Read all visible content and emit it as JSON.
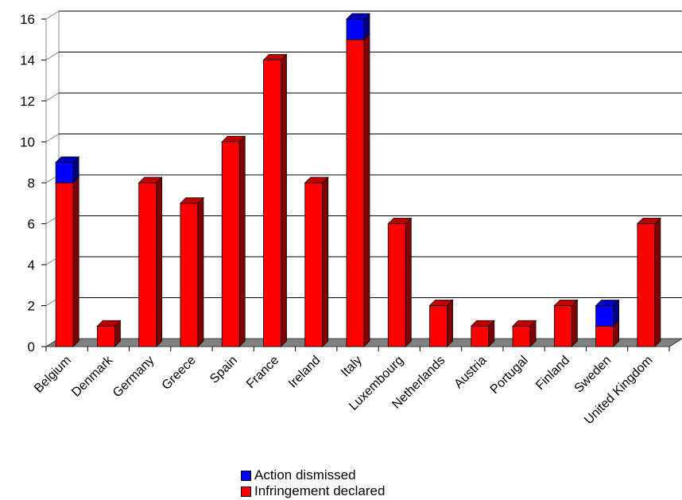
{
  "chart_data": {
    "type": "bar",
    "stacked": true,
    "three_d": true,
    "categories": [
      "Belgium",
      "Denmark",
      "Germany",
      "Greece",
      "Spain",
      "France",
      "Ireland",
      "Italy",
      "Luxembourg",
      "Netherlands",
      "Austria",
      "Portugal",
      "Finland",
      "Sweden",
      "United Kingdom"
    ],
    "series": [
      {
        "name": "Infringement declared",
        "color": "#ff0000",
        "values": [
          8,
          1,
          8,
          7,
          10,
          14,
          8,
          15,
          6,
          2,
          1,
          1,
          2,
          1,
          6
        ]
      },
      {
        "name": "Action dismissed",
        "color": "#0000ff",
        "values": [
          1,
          0,
          0,
          0,
          0,
          0,
          0,
          1,
          0,
          0,
          0,
          0,
          0,
          1,
          0
        ]
      }
    ],
    "ylim": [
      0,
      16
    ],
    "yticks": [
      0,
      2,
      4,
      6,
      8,
      10,
      12,
      14,
      16
    ],
    "grid": true,
    "legend_position": "bottom-center"
  }
}
